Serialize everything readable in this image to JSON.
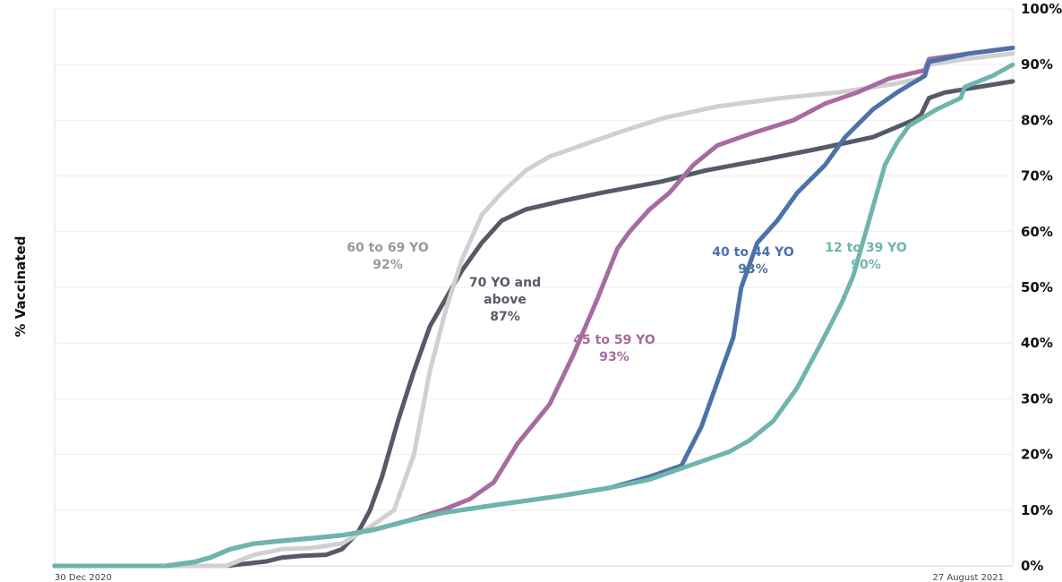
{
  "chart_data": {
    "type": "line",
    "title": "",
    "xlabel": "",
    "ylabel": "% Vaccinated",
    "x_start": "30 Dec 2020",
    "x_end": "27 August 2021",
    "x_tick_labels": [
      "30 Dec 2020",
      "27 August 2021"
    ],
    "ylim": [
      0,
      100
    ],
    "yticks": [
      0,
      10,
      20,
      30,
      40,
      50,
      60,
      70,
      80,
      90,
      100
    ],
    "ytick_labels": [
      "0%",
      "10%",
      "20%",
      "30%",
      "40%",
      "50%",
      "60%",
      "70%",
      "80%",
      "90%",
      "100%"
    ],
    "grid": "horizontal",
    "series": [
      {
        "name": "70 YO and above",
        "label_lines": [
          "70 YO and",
          "above",
          "87%"
        ],
        "final": "87%",
        "color": "#555b66",
        "points": [
          [
            "2020-12-30",
            0
          ],
          [
            "2021-02-05",
            0
          ],
          [
            "2021-02-11",
            0
          ],
          [
            "2021-02-21",
            0.8
          ],
          [
            "2021-02-25",
            1.5
          ],
          [
            "2021-03-02",
            1.8
          ],
          [
            "2021-03-08",
            2
          ],
          [
            "2021-03-12",
            3
          ],
          [
            "2021-03-16",
            6
          ],
          [
            "2021-03-19",
            10
          ],
          [
            "2021-03-22",
            16
          ],
          [
            "2021-03-26",
            26
          ],
          [
            "2021-03-30",
            35
          ],
          [
            "2021-04-03",
            43
          ],
          [
            "2021-04-07",
            48
          ],
          [
            "2021-04-11",
            53
          ],
          [
            "2021-04-16",
            58
          ],
          [
            "2021-04-21",
            62
          ],
          [
            "2021-04-27",
            64
          ],
          [
            "2021-05-06",
            65.5
          ],
          [
            "2021-05-16",
            67
          ],
          [
            "2021-05-31",
            69
          ],
          [
            "2021-06-11",
            71
          ],
          [
            "2021-06-26",
            73
          ],
          [
            "2021-07-10",
            75
          ],
          [
            "2021-07-23",
            77
          ],
          [
            "2021-08-02",
            80
          ],
          [
            "2021-08-04",
            81
          ],
          [
            "2021-08-06",
            84
          ],
          [
            "2021-08-10",
            85
          ],
          [
            "2021-08-27",
            87
          ]
        ]
      },
      {
        "name": "60 to 69 YO",
        "label_lines": [
          "60 to 69 YO",
          "92%"
        ],
        "final": "92%",
        "color": "#d0d0d0",
        "points": [
          [
            "2020-12-30",
            0
          ],
          [
            "2021-02-06",
            0
          ],
          [
            "2021-02-11",
            0
          ],
          [
            "2021-02-18",
            2
          ],
          [
            "2021-02-25",
            3
          ],
          [
            "2021-03-04",
            3.2
          ],
          [
            "2021-03-12",
            4
          ],
          [
            "2021-03-19",
            7
          ],
          [
            "2021-03-25",
            10
          ],
          [
            "2021-03-30",
            20
          ],
          [
            "2021-04-03",
            35
          ],
          [
            "2021-04-07",
            46
          ],
          [
            "2021-04-11",
            55
          ],
          [
            "2021-04-16",
            63
          ],
          [
            "2021-04-21",
            67
          ],
          [
            "2021-04-27",
            71
          ],
          [
            "2021-05-03",
            73.5
          ],
          [
            "2021-05-11",
            75.5
          ],
          [
            "2021-05-21",
            78
          ],
          [
            "2021-06-01",
            80.5
          ],
          [
            "2021-06-14",
            82.5
          ],
          [
            "2021-06-30",
            84
          ],
          [
            "2021-07-14",
            85
          ],
          [
            "2021-07-28",
            86.5
          ],
          [
            "2021-08-04",
            87.5
          ],
          [
            "2021-08-06",
            90
          ],
          [
            "2021-08-15",
            91
          ],
          [
            "2021-08-27",
            92
          ]
        ]
      },
      {
        "name": "45 to 59 YO",
        "label_lines": [
          "45 to 59 YO",
          "93%"
        ],
        "final": "93%",
        "color": "#a86b9f",
        "points": [
          [
            "2020-12-30",
            0
          ],
          [
            "2021-01-27",
            0
          ],
          [
            "2021-02-03",
            0.7
          ],
          [
            "2021-02-07",
            1.5
          ],
          [
            "2021-02-12",
            3
          ],
          [
            "2021-02-18",
            4
          ],
          [
            "2021-02-25",
            4.5
          ],
          [
            "2021-03-05",
            5
          ],
          [
            "2021-03-12",
            5.5
          ],
          [
            "2021-03-20",
            6.5
          ],
          [
            "2021-03-28",
            8
          ],
          [
            "2021-04-06",
            10
          ],
          [
            "2021-04-13",
            12
          ],
          [
            "2021-04-19",
            15
          ],
          [
            "2021-04-25",
            22
          ],
          [
            "2021-05-03",
            29
          ],
          [
            "2021-05-09",
            38
          ],
          [
            "2021-05-15",
            48
          ],
          [
            "2021-05-20",
            57
          ],
          [
            "2021-05-23",
            60
          ],
          [
            "2021-05-28",
            64
          ],
          [
            "2021-06-02",
            67
          ],
          [
            "2021-06-08",
            72
          ],
          [
            "2021-06-14",
            75.5
          ],
          [
            "2021-06-22",
            77.5
          ],
          [
            "2021-07-03",
            80
          ],
          [
            "2021-07-11",
            83
          ],
          [
            "2021-07-19",
            85
          ],
          [
            "2021-07-27",
            87.5
          ],
          [
            "2021-08-05",
            89
          ],
          [
            "2021-08-06",
            91
          ],
          [
            "2021-08-16",
            92
          ],
          [
            "2021-08-27",
            93
          ]
        ]
      },
      {
        "name": "40 to 44 YO",
        "label_lines": [
          "40 to 44 YO",
          "93%"
        ],
        "final": "93%",
        "color": "#4c72a8",
        "points": [
          [
            "2020-12-30",
            0
          ],
          [
            "2021-01-27",
            0
          ],
          [
            "2021-02-03",
            0.7
          ],
          [
            "2021-02-07",
            1.5
          ],
          [
            "2021-02-12",
            3
          ],
          [
            "2021-02-18",
            4
          ],
          [
            "2021-02-25",
            4.5
          ],
          [
            "2021-03-05",
            5
          ],
          [
            "2021-03-12",
            5.5
          ],
          [
            "2021-03-20",
            6.5
          ],
          [
            "2021-03-28",
            8
          ],
          [
            "2021-04-06",
            9.5
          ],
          [
            "2021-04-20",
            11
          ],
          [
            "2021-05-05",
            12.5
          ],
          [
            "2021-05-18",
            14
          ],
          [
            "2021-05-28",
            16
          ],
          [
            "2021-06-05",
            18
          ],
          [
            "2021-06-10",
            25
          ],
          [
            "2021-06-15",
            35
          ],
          [
            "2021-06-18",
            41
          ],
          [
            "2021-06-20",
            50
          ],
          [
            "2021-06-24",
            58
          ],
          [
            "2021-06-29",
            62
          ],
          [
            "2021-07-04",
            67
          ],
          [
            "2021-07-11",
            72
          ],
          [
            "2021-07-16",
            77
          ],
          [
            "2021-07-23",
            82
          ],
          [
            "2021-07-29",
            85
          ],
          [
            "2021-08-05",
            88
          ],
          [
            "2021-08-06",
            90.5
          ],
          [
            "2021-08-16",
            92
          ],
          [
            "2021-08-27",
            93
          ]
        ]
      },
      {
        "name": "12 to 39 YO",
        "label_lines": [
          "12 to 39 YO",
          "90%"
        ],
        "final": "90%",
        "color": "#6fb4ad",
        "points": [
          [
            "2020-12-30",
            0
          ],
          [
            "2021-01-27",
            0
          ],
          [
            "2021-02-03",
            0.7
          ],
          [
            "2021-02-07",
            1.5
          ],
          [
            "2021-02-12",
            3
          ],
          [
            "2021-02-18",
            4
          ],
          [
            "2021-02-25",
            4.5
          ],
          [
            "2021-03-05",
            5
          ],
          [
            "2021-03-12",
            5.5
          ],
          [
            "2021-03-20",
            6.5
          ],
          [
            "2021-03-28",
            8
          ],
          [
            "2021-04-06",
            9.5
          ],
          [
            "2021-04-20",
            11
          ],
          [
            "2021-05-05",
            12.5
          ],
          [
            "2021-05-18",
            14
          ],
          [
            "2021-05-28",
            15.5
          ],
          [
            "2021-06-07",
            18
          ],
          [
            "2021-06-17",
            20.5
          ],
          [
            "2021-06-22",
            22.5
          ],
          [
            "2021-06-28",
            26
          ],
          [
            "2021-07-04",
            32
          ],
          [
            "2021-07-10",
            40
          ],
          [
            "2021-07-15",
            47
          ],
          [
            "2021-07-18",
            52
          ],
          [
            "2021-07-22",
            62
          ],
          [
            "2021-07-26",
            72
          ],
          [
            "2021-07-29",
            76
          ],
          [
            "2021-08-01",
            79
          ],
          [
            "2021-08-08",
            82
          ],
          [
            "2021-08-14",
            84
          ],
          [
            "2021-08-15",
            86
          ],
          [
            "2021-08-22",
            88
          ],
          [
            "2021-08-27",
            90
          ]
        ]
      }
    ]
  }
}
